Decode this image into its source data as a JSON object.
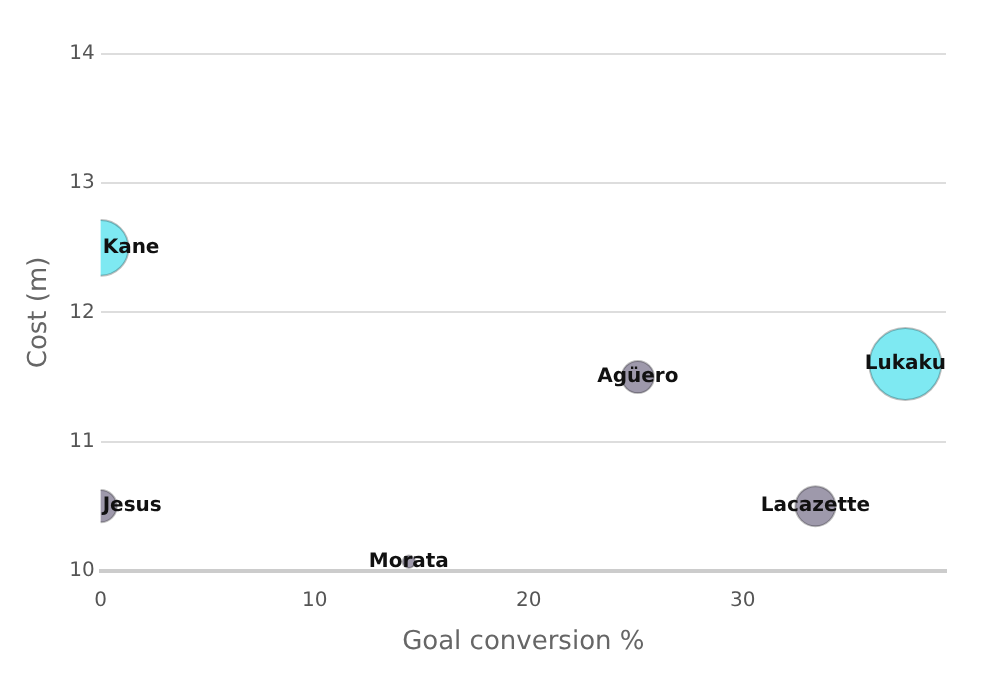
{
  "chart_data": {
    "type": "bubble",
    "xlabel": "Goal conversion %",
    "ylabel": "Cost (m)",
    "xlim": [
      0,
      39.5
    ],
    "ylim": [
      10,
      14
    ],
    "xticks": [
      0,
      10,
      20,
      30
    ],
    "yticks": [
      10,
      11,
      12,
      13,
      14
    ],
    "grid": "y",
    "legend": false,
    "series": [
      {
        "name": "Kane",
        "color": "#7ee9f2",
        "x": [
          0
        ],
        "values": [
          12.5
        ],
        "sizes": [
          0.6
        ]
      },
      {
        "name": "Jesus",
        "color": "#9e99ab",
        "x": [
          0
        ],
        "values": [
          10.5
        ],
        "sizes": [
          0.2
        ]
      },
      {
        "name": "Morata",
        "color": "#9e99ab",
        "x": [
          14.4
        ],
        "values": [
          10.07
        ],
        "sizes": [
          0.03
        ]
      },
      {
        "name": "Agüero",
        "color": "#9e99ab",
        "x": [
          25.1
        ],
        "values": [
          11.5
        ],
        "sizes": [
          0.2
        ]
      },
      {
        "name": "Lukaku",
        "color": "#7ee9f2",
        "x": [
          37.6
        ],
        "values": [
          11.6
        ],
        "sizes": [
          1
        ]
      },
      {
        "name": "Lacazette",
        "color": "#9e99ab",
        "x": [
          33.4
        ],
        "values": [
          10.5
        ],
        "sizes": [
          0.31
        ]
      }
    ]
  }
}
